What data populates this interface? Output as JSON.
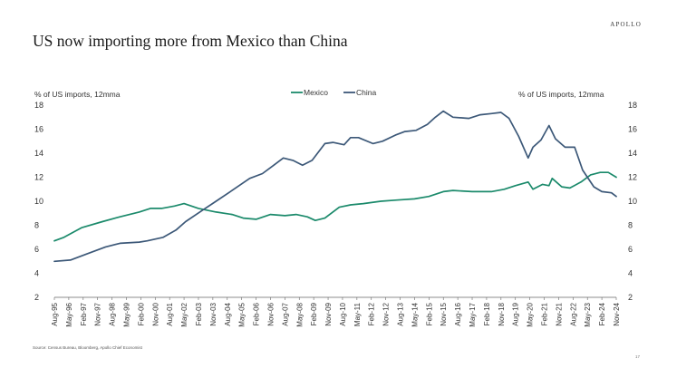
{
  "brand": "APOLLO",
  "title": "US now importing more from Mexico than China",
  "source": "Source: Census Bureau, Bloomberg, Apollo Chief Economist",
  "page_number": "17",
  "colors": {
    "mexico": "#1b8a6b",
    "china": "#3c5878"
  },
  "chart_data": {
    "type": "line",
    "ylabel_left": "% of US imports, 12mma",
    "ylabel_right": "% of US imports, 12mma",
    "ylim": [
      2,
      18
    ],
    "yticks": [
      "18",
      "16",
      "14",
      "12",
      "10",
      "8",
      "6",
      "4",
      "2"
    ],
    "xlim": [
      "1995-08",
      "2024-11"
    ],
    "xticks": [
      "Aug-95",
      "May-96",
      "Feb-97",
      "Nov-97",
      "Aug-98",
      "May-99",
      "Feb-00",
      "Nov-00",
      "Aug-01",
      "May-02",
      "Feb-03",
      "Nov-03",
      "Aug-04",
      "May-05",
      "Feb-06",
      "Nov-06",
      "Aug-07",
      "May-08",
      "Feb-09",
      "Nov-09",
      "Aug-10",
      "May-11",
      "Feb-12",
      "Nov-12",
      "Aug-13",
      "May-14",
      "Feb-15",
      "Nov-15",
      "Aug-16",
      "May-17",
      "Feb-18",
      "Nov-18",
      "Aug-19",
      "May-20",
      "Feb-21",
      "Nov-21",
      "Aug-22",
      "May-23",
      "Feb-24",
      "Nov-24"
    ],
    "legend_position": "top-center",
    "series": [
      {
        "name": "Mexico",
        "points": [
          [
            "1995-08",
            6.7
          ],
          [
            "1996-02",
            7.0
          ],
          [
            "1997-01",
            7.8
          ],
          [
            "1998-02",
            8.3
          ],
          [
            "1999-01",
            8.7
          ],
          [
            "2000-01",
            9.1
          ],
          [
            "2000-08",
            9.4
          ],
          [
            "2001-03",
            9.4
          ],
          [
            "2001-11",
            9.6
          ],
          [
            "2002-05",
            9.8
          ],
          [
            "2003-02",
            9.4
          ],
          [
            "2004-01",
            9.1
          ],
          [
            "2004-11",
            8.9
          ],
          [
            "2005-06",
            8.6
          ],
          [
            "2006-02",
            8.5
          ],
          [
            "2006-11",
            8.9
          ],
          [
            "2007-08",
            8.8
          ],
          [
            "2008-03",
            8.9
          ],
          [
            "2008-10",
            8.7
          ],
          [
            "2009-03",
            8.4
          ],
          [
            "2009-09",
            8.6
          ],
          [
            "2010-06",
            9.5
          ],
          [
            "2011-01",
            9.7
          ],
          [
            "2011-09",
            9.8
          ],
          [
            "2012-08",
            10.0
          ],
          [
            "2013-06",
            10.1
          ],
          [
            "2014-05",
            10.2
          ],
          [
            "2015-02",
            10.4
          ],
          [
            "2015-11",
            10.8
          ],
          [
            "2016-05",
            10.9
          ],
          [
            "2017-05",
            10.8
          ],
          [
            "2018-05",
            10.8
          ],
          [
            "2019-01",
            11.0
          ],
          [
            "2019-08",
            11.3
          ],
          [
            "2020-04",
            11.6
          ],
          [
            "2020-07",
            11.0
          ],
          [
            "2021-01",
            11.4
          ],
          [
            "2021-05",
            11.3
          ],
          [
            "2021-07",
            11.9
          ],
          [
            "2022-01",
            11.2
          ],
          [
            "2022-06",
            11.1
          ],
          [
            "2023-01",
            11.6
          ],
          [
            "2023-07",
            12.2
          ],
          [
            "2024-01",
            12.4
          ],
          [
            "2024-06",
            12.4
          ],
          [
            "2024-11",
            12.0
          ]
        ]
      },
      {
        "name": "China",
        "points": [
          [
            "1995-08",
            5.0
          ],
          [
            "1996-06",
            5.1
          ],
          [
            "1997-04",
            5.6
          ],
          [
            "1998-04",
            6.2
          ],
          [
            "1999-01",
            6.5
          ],
          [
            "2000-01",
            6.6
          ],
          [
            "2000-06",
            6.7
          ],
          [
            "2001-04",
            7.0
          ],
          [
            "2001-12",
            7.6
          ],
          [
            "2002-06",
            8.3
          ],
          [
            "2003-04",
            9.2
          ],
          [
            "2004-01",
            10.0
          ],
          [
            "2004-11",
            10.9
          ],
          [
            "2005-10",
            11.9
          ],
          [
            "2006-06",
            12.3
          ],
          [
            "2007-01",
            13.0
          ],
          [
            "2007-07",
            13.6
          ],
          [
            "2008-01",
            13.4
          ],
          [
            "2008-07",
            13.0
          ],
          [
            "2009-01",
            13.4
          ],
          [
            "2009-09",
            14.8
          ],
          [
            "2010-02",
            14.9
          ],
          [
            "2010-09",
            14.7
          ],
          [
            "2011-01",
            15.3
          ],
          [
            "2011-06",
            15.3
          ],
          [
            "2012-03",
            14.8
          ],
          [
            "2012-09",
            15.0
          ],
          [
            "2013-05",
            15.5
          ],
          [
            "2013-11",
            15.8
          ],
          [
            "2014-06",
            15.9
          ],
          [
            "2015-01",
            16.4
          ],
          [
            "2015-06",
            17.0
          ],
          [
            "2015-11",
            17.5
          ],
          [
            "2016-05",
            17.0
          ],
          [
            "2017-03",
            16.9
          ],
          [
            "2017-10",
            17.2
          ],
          [
            "2018-05",
            17.3
          ],
          [
            "2018-11",
            17.4
          ],
          [
            "2019-04",
            16.9
          ],
          [
            "2019-10",
            15.4
          ],
          [
            "2020-04",
            13.6
          ],
          [
            "2020-07",
            14.5
          ],
          [
            "2020-12",
            15.1
          ],
          [
            "2021-05",
            16.3
          ],
          [
            "2021-09",
            15.2
          ],
          [
            "2022-03",
            14.5
          ],
          [
            "2022-09",
            14.5
          ],
          [
            "2023-02",
            12.6
          ],
          [
            "2023-09",
            11.2
          ],
          [
            "2024-02",
            10.8
          ],
          [
            "2024-08",
            10.7
          ],
          [
            "2024-11",
            10.4
          ]
        ]
      }
    ]
  }
}
